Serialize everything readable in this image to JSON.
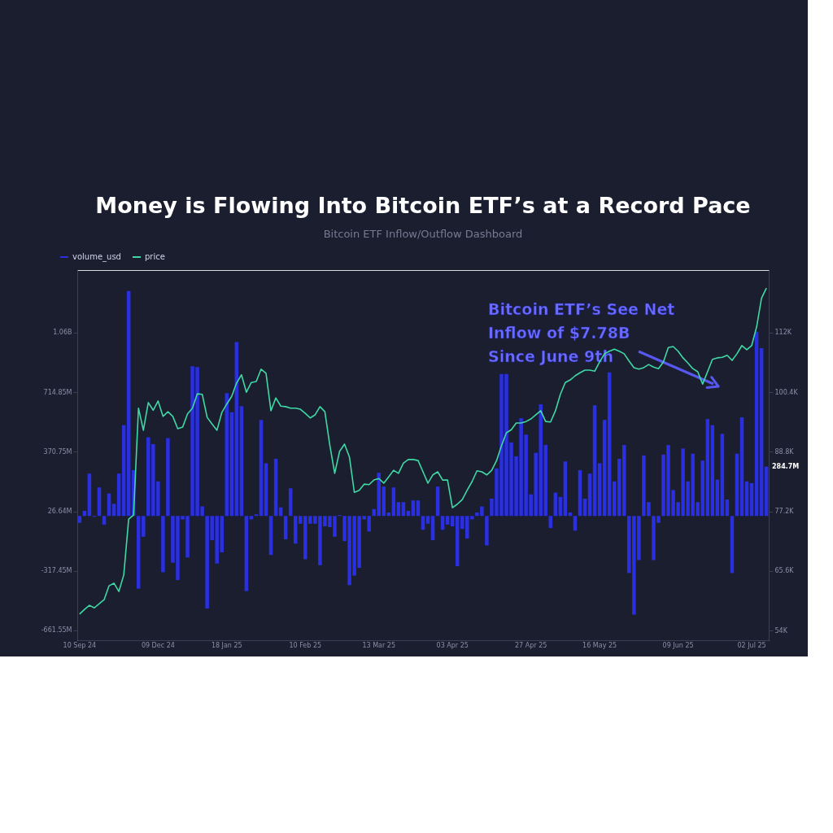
{
  "chart_data": {
    "type": "bar",
    "title": "Money is Flowing Into Bitcoin ETF’s at a Record Pace",
    "subtitle": "Bitcoin ETF Inflow/Outflow Dashboard",
    "categories": [
      "10 Sep 24",
      null,
      null,
      null,
      null,
      null,
      null,
      null,
      null,
      null,
      null,
      null,
      null,
      null,
      null,
      null,
      "09 Dec 24",
      null,
      null,
      null,
      null,
      null,
      null,
      null,
      null,
      null,
      null,
      null,
      null,
      null,
      "18 Jan 25",
      null,
      null,
      null,
      null,
      null,
      null,
      null,
      null,
      null,
      null,
      null,
      null,
      null,
      null,
      null,
      "10 Feb 25",
      null,
      null,
      null,
      null,
      null,
      null,
      null,
      null,
      null,
      null,
      null,
      null,
      null,
      null,
      "13 Mar 25",
      null,
      null,
      null,
      null,
      null,
      null,
      null,
      null,
      null,
      null,
      null,
      null,
      null,
      null,
      "03 Apr 25",
      null,
      null,
      null,
      null,
      null,
      null,
      null,
      null,
      null,
      null,
      null,
      null,
      null,
      null,
      null,
      "27 Apr 25",
      null,
      null,
      null,
      null,
      null,
      null,
      null,
      null,
      null,
      null,
      null,
      null,
      null,
      "16 May 25",
      null,
      null,
      null,
      null,
      null,
      null,
      null,
      null,
      null,
      null,
      null,
      null,
      null,
      null,
      null,
      "09 Jun 25",
      null,
      null,
      null,
      null,
      null,
      null,
      null,
      null,
      null,
      null,
      null,
      null,
      null,
      null,
      "02 Jul 25",
      null,
      null,
      null
    ],
    "series": [
      {
        "name": "volume_usd",
        "color": "#2a2fe0",
        "values": [
          -40000000.0,
          30000000.0,
          245000000.0,
          -5000000.0,
          165000000.0,
          -50000000.0,
          130000000.0,
          70000000.0,
          245000000.0,
          525000000.0,
          1300000000.0,
          265000000.0,
          -420000000.0,
          -120000000.0,
          455000000.0,
          415000000.0,
          200000000.0,
          -325000000.0,
          450000000.0,
          -270000000.0,
          -370000000.0,
          -20000000.0,
          -240000000.0,
          865000000.0,
          860000000.0,
          55000000.0,
          -535000000.0,
          -140000000.0,
          -275000000.0,
          -210000000.0,
          710000000.0,
          600000000.0,
          1005000000.0,
          635000000.0,
          -435000000.0,
          -20000000.0,
          10000000.0,
          555000000.0,
          305000000.0,
          -225000000.0,
          330000000.0,
          50000000.0,
          -135000000.0,
          160000000.0,
          -160000000.0,
          -45000000.0,
          -250000000.0,
          -45000000.0,
          -45000000.0,
          -285000000.0,
          -60000000.0,
          -65000000.0,
          -120000000.0,
          5000000.0,
          -145000000.0,
          -400000000.0,
          -345000000.0,
          -300000000.0,
          -20000000.0,
          -90000000.0,
          40000000.0,
          250000000.0,
          170000000.0,
          20000000.0,
          165000000.0,
          80000000.0,
          80000000.0,
          30000000.0,
          90000000.0,
          90000000.0,
          -80000000.0,
          -45000000.0,
          -140000000.0,
          170000000.0,
          -80000000.0,
          -50000000.0,
          -60000000.0,
          -290000000.0,
          -75000000.0,
          -130000000.0,
          -20000000.0,
          20000000.0,
          55000000.0,
          -170000000.0,
          100000000.0,
          275000000.0,
          820000000.0,
          820000000.0,
          425000000.0,
          345000000.0,
          565000000.0,
          470000000.0,
          125000000.0,
          365000000.0,
          645000000.0,
          410000000.0,
          -70000000.0,
          135000000.0,
          110000000.0,
          315000000.0,
          20000000.0,
          -85000000.0,
          265000000.0,
          100000000.0,
          245000000.0,
          640000000.0,
          305000000.0,
          555000000.0,
          830000000.0,
          200000000.0,
          330000000.0,
          410000000.0,
          -330000000.0,
          -570000000.0,
          -255000000.0,
          350000000.0,
          80000000.0,
          -255000000.0,
          -40000000.0,
          355000000.0,
          410000000.0,
          150000000.0,
          80000000.0,
          390000000.0,
          200000000.0,
          360000000.0,
          80000000.0,
          320000000.0,
          560000000.0,
          525000000.0,
          210000000.0,
          475000000.0,
          95000000.0,
          -330000000.0,
          360000000.0,
          570000000.0,
          200000000.0,
          190000000.0,
          1065000000.0,
          970000000.0,
          285000000.0
        ]
      },
      {
        "name": "price",
        "type": "line",
        "axis": "y2",
        "color": "#3fd9a6",
        "values": [
          57200,
          58100,
          58900,
          58400,
          59200,
          60000,
          62700,
          63200,
          61600,
          64800,
          75700,
          76500,
          97300,
          93000,
          98400,
          96900,
          98700,
          95700,
          96600,
          95700,
          93300,
          93600,
          96200,
          97300,
          100100,
          100000,
          95500,
          94200,
          93000,
          96500,
          98100,
          99600,
          102200,
          103800,
          100400,
          102300,
          102500,
          104900,
          104100,
          96800,
          99300,
          97700,
          97600,
          97300,
          97300,
          97100,
          96300,
          95400,
          96000,
          97600,
          96600,
          90100,
          84600,
          88900,
          90300,
          87800,
          80900,
          81300,
          82500,
          82400,
          83300,
          83600,
          82700,
          83900,
          85200,
          84600,
          86600,
          87300,
          87300,
          87100,
          84900,
          82700,
          84300,
          84900,
          83300,
          83300,
          77900,
          78600,
          79500,
          81300,
          83000,
          85100,
          84900,
          84300,
          85200,
          87100,
          90000,
          92500,
          93100,
          94400,
          94400,
          94700,
          95200,
          96000,
          96800,
          94700,
          94600,
          96800,
          100000,
          102300,
          102800,
          103600,
          104200,
          104700,
          104700,
          104500,
          106300,
          107900,
          108400,
          108800,
          108400,
          107900,
          106500,
          105200,
          104900,
          105200,
          105800,
          105300,
          105000,
          106300,
          109100,
          109300,
          108400,
          107100,
          106100,
          105000,
          104400,
          102000,
          104400,
          106800,
          107100,
          107200,
          107600,
          106600,
          107900,
          109500,
          108700,
          109500,
          113100,
          118700,
          120700
        ]
      }
    ],
    "ylim": [
      -718000000.0,
      1421000000.0
    ],
    "yticks": [
      {
        "value": 1060000000.0,
        "label": "1.06B"
      },
      {
        "value": 714850000.0,
        "label": "714.85M"
      },
      {
        "value": 370750000.0,
        "label": "370.75M"
      },
      {
        "value": 26640000.0,
        "label": "26.64M"
      },
      {
        "value": -317450000.0,
        "label": "-317.45M"
      },
      {
        "value": -661550000.0,
        "label": "-661.55M"
      }
    ],
    "y2lim": [
      52100,
      124200
    ],
    "y2ticks": [
      {
        "value": 112000,
        "label": "112K"
      },
      {
        "value": 100400,
        "label": "100.4K"
      },
      {
        "value": 88800,
        "label": "88.8K"
      },
      {
        "value": 77200,
        "label": "77.2K"
      },
      {
        "value": 65600,
        "label": "65.6K"
      },
      {
        "value": 54000,
        "label": "54K"
      }
    ],
    "annotations": [
      "Bitcoin ETF’s See Net\nInflow of $7.78B\nSince June 9th",
      "284.7M"
    ],
    "legend": "top left",
    "marker": "none",
    "line_style": "solid"
  }
}
